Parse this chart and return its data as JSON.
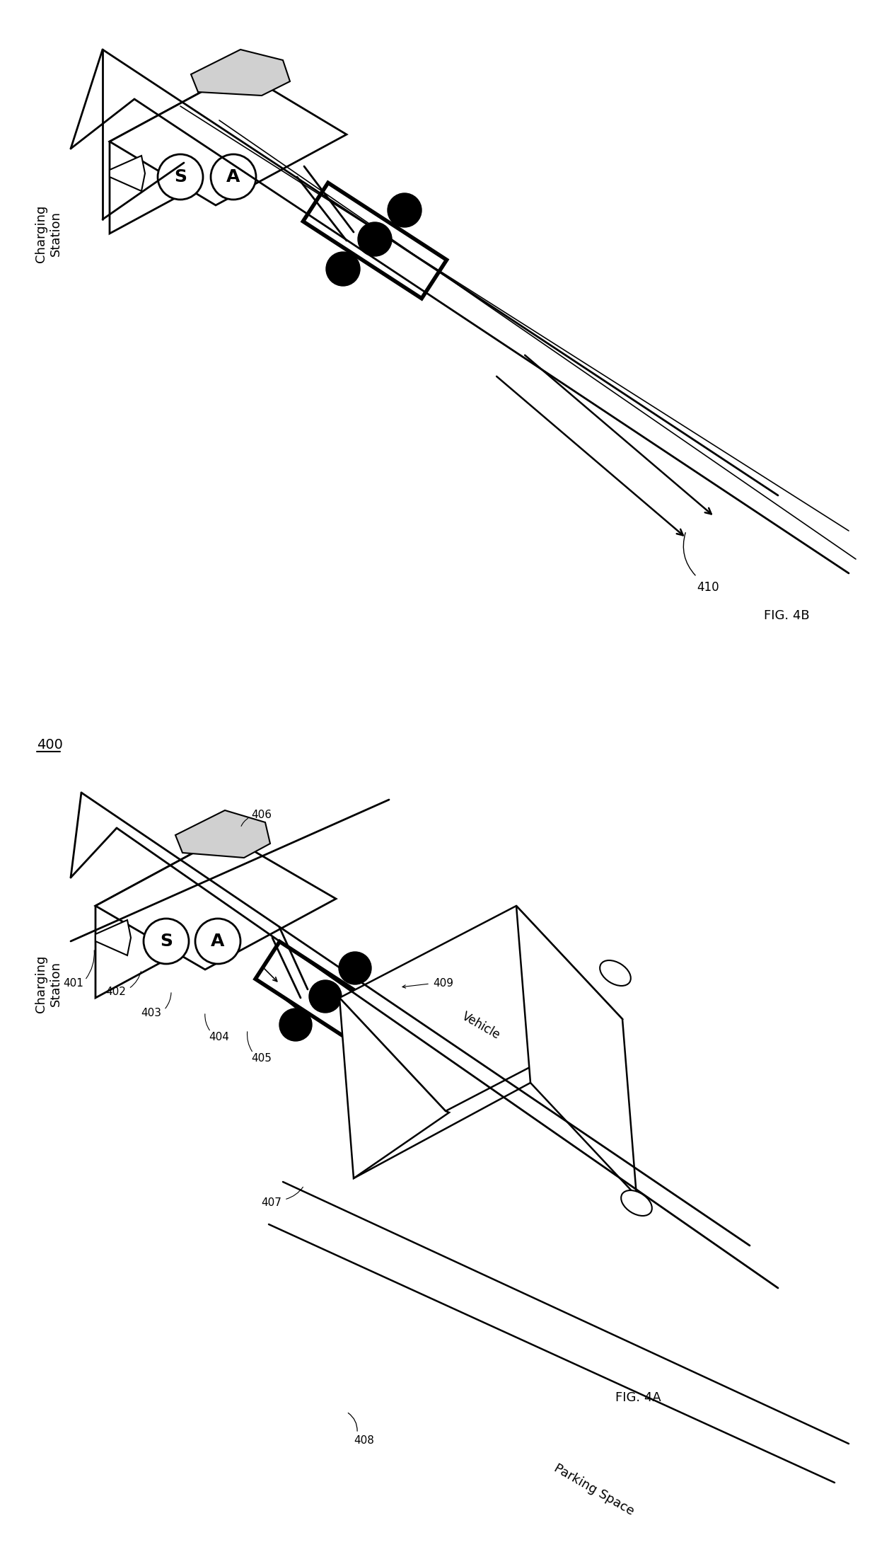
{
  "fig_width": 12.4,
  "fig_height": 22.1,
  "bg_color": "#ffffff",
  "line_color": "#000000",
  "fig4a_label": "FIG. 4A",
  "fig4b_label": "FIG. 4B",
  "label_400": "400",
  "label_charging_station": "Charging\nStation",
  "label_401": "401",
  "label_402": "402",
  "label_403": "403",
  "label_404": "404",
  "label_405": "405",
  "label_406": "406",
  "label_407": "407",
  "label_408": "408",
  "label_409": "409",
  "label_410": "410",
  "label_vehicle": "Vehicle",
  "label_parking_space": "Parking Space",
  "label_S": "S",
  "label_A": "A"
}
